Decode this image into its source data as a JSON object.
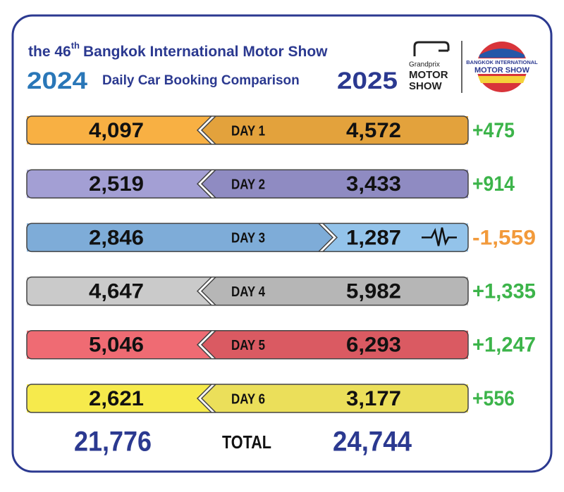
{
  "header": {
    "title_prefix": "the 46",
    "title_sup": "th",
    "title_rest": "Bangkok International Motor Show",
    "subtitle": "Daily Car Booking Comparison",
    "year_left": "2024",
    "year_right": "2025"
  },
  "logos": {
    "grandprix_top": "Grandprix",
    "grandprix_mid": "MOTOR",
    "grandprix_bottom": "SHOW",
    "bims_top": "BANGKOK INTERNATIONAL",
    "bims_bottom": "MOTOR SHOW"
  },
  "rows": [
    {
      "label": "DAY 1",
      "left": "4,097",
      "right": "4,572",
      "diff": "+475",
      "left_color": "#f8b043",
      "right_color": "#e3a23c"
    },
    {
      "label": "DAY 2",
      "left": "2,519",
      "right": "3,433",
      "diff": "+914",
      "left_color": "#a39fd4",
      "right_color": "#8f8bc2"
    },
    {
      "label": "DAY 3",
      "left": "2,846",
      "right": "1,287",
      "diff": "-1,559",
      "left_color": "#7eacd8",
      "right_color": "#93c3ea"
    },
    {
      "label": "DAY 4",
      "left": "4,647",
      "right": "5,982",
      "diff": "+1,335",
      "left_color": "#cacaca",
      "right_color": "#b6b6b6"
    },
    {
      "label": "DAY 5",
      "left": "5,046",
      "right": "6,293",
      "diff": "+1,247",
      "left_color": "#ef6b73",
      "right_color": "#da5a62"
    },
    {
      "label": "DAY 6",
      "left": "2,621",
      "right": "3,177",
      "diff": "+556",
      "left_color": "#f6ea4c",
      "right_color": "#ebdf5a"
    }
  ],
  "total": {
    "left": "21,776",
    "label": "TOTAL",
    "right": "24,744"
  }
}
